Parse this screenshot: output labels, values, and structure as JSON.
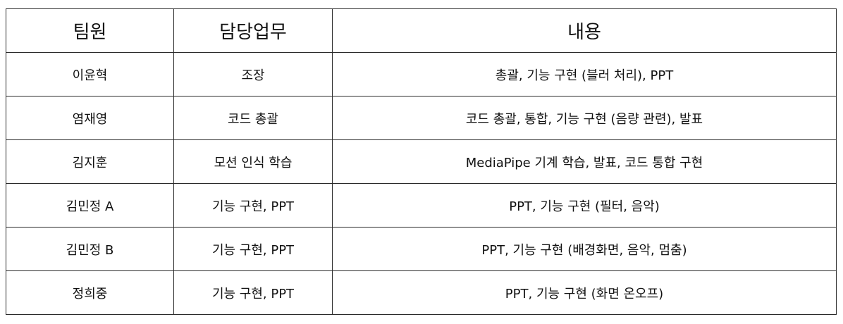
{
  "table": {
    "headers": [
      "팀원",
      "담당업무",
      "내용"
    ],
    "rows": [
      [
        "이윤혁",
        "조장",
        "총괄, 기능 구현 (블러 처리), PPT"
      ],
      [
        "염재영",
        "코드 총괄",
        "코드 총괄, 통합, 기능 구현 (음량 관련), 발표"
      ],
      [
        "김지훈",
        "모션 인식 학습",
        "MediaPipe 기계 학습, 발표, 코드 통합 구현"
      ],
      [
        "김민정 A",
        "기능 구현, PPT",
        "PPT, 기능 구현 (필터, 음악)"
      ],
      [
        "김민정 B",
        "기능 구현, PPT",
        "PPT, 기능 구현 (배경화면, 음악, 멈춤)"
      ],
      [
        "정희중",
        "기능 구현, PPT",
        "PPT, 기능 구현 (화면 온오프)"
      ]
    ]
  }
}
